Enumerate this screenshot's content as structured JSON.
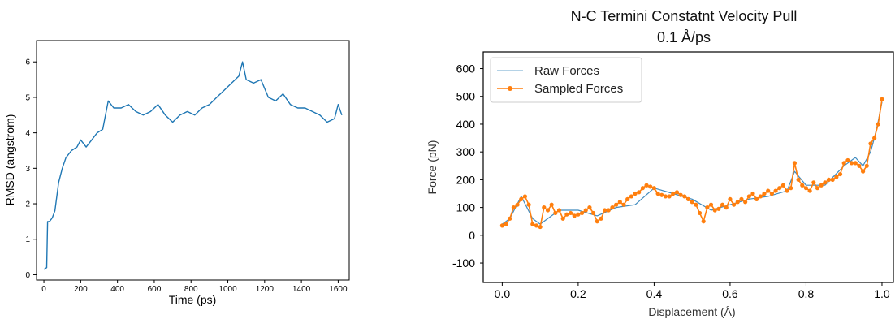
{
  "chart_data": [
    {
      "type": "line",
      "title": "",
      "xlabel": "Time (ps)",
      "ylabel": "RMSD (angstrom)",
      "xlim": [
        -40,
        1660
      ],
      "ylim": [
        -0.15,
        6.6
      ],
      "x_ticks": [
        "0",
        "200",
        "400",
        "600",
        "800",
        "1000",
        "1200",
        "1400",
        "1600"
      ],
      "y_ticks": [
        "0",
        "1",
        "2",
        "3",
        "4",
        "5",
        "6"
      ],
      "grid": false,
      "series": [
        {
          "color": "#1f77b4",
          "x": [
            0,
            15,
            20,
            30,
            45,
            60,
            80,
            100,
            120,
            150,
            180,
            200,
            230,
            260,
            290,
            320,
            350,
            380,
            420,
            460,
            500,
            540,
            580,
            620,
            660,
            700,
            740,
            780,
            820,
            860,
            900,
            940,
            980,
            1020,
            1060,
            1080,
            1100,
            1140,
            1180,
            1220,
            1260,
            1300,
            1340,
            1380,
            1420,
            1460,
            1500,
            1540,
            1580,
            1600,
            1620
          ],
          "y": [
            0.15,
            0.2,
            1.5,
            1.5,
            1.6,
            1.8,
            2.6,
            3.0,
            3.3,
            3.5,
            3.6,
            3.8,
            3.6,
            3.8,
            4.0,
            4.1,
            4.9,
            4.7,
            4.7,
            4.8,
            4.6,
            4.5,
            4.6,
            4.8,
            4.5,
            4.3,
            4.5,
            4.6,
            4.5,
            4.7,
            4.8,
            5.0,
            5.2,
            5.4,
            5.6,
            6.0,
            5.5,
            5.4,
            5.5,
            5.0,
            4.9,
            5.1,
            4.8,
            4.7,
            4.7,
            4.6,
            4.5,
            4.3,
            4.4,
            4.8,
            4.5
          ]
        }
      ]
    },
    {
      "type": "line",
      "title": "N-C Termini Constatnt Velocity Pull",
      "subtitle": "0.1 Å/ps",
      "xlabel": "Displacement (Å)",
      "ylabel": "Force (pN)",
      "xlim": [
        -0.05,
        1.03
      ],
      "ylim": [
        -170,
        660
      ],
      "x_ticks": [
        "0.0",
        "0.2",
        "0.4",
        "0.6",
        "0.8",
        "1.0"
      ],
      "y_ticks": [
        "-100",
        "0",
        "100",
        "200",
        "300",
        "400",
        "500",
        "600"
      ],
      "grid": false,
      "legend": "top-left",
      "series": [
        {
          "name": "Raw Forces",
          "color": "#1f77b4",
          "x": [
            0.0,
            0.02,
            0.05,
            0.08,
            0.1,
            0.15,
            0.2,
            0.25,
            0.3,
            0.35,
            0.4,
            0.45,
            0.5,
            0.55,
            0.6,
            0.65,
            0.7,
            0.75,
            0.77,
            0.8,
            0.85,
            0.9,
            0.93,
            0.95,
            0.97,
            0.98,
            0.99,
            1.0
          ],
          "y": [
            40,
            60,
            140,
            60,
            40,
            90,
            90,
            70,
            100,
            110,
            170,
            150,
            130,
            90,
            110,
            130,
            140,
            160,
            230,
            180,
            180,
            250,
            280,
            250,
            300,
            350,
            410,
            480
          ]
        },
        {
          "name": "Sampled Forces",
          "color": "#ff7f0e",
          "x": [
            0.0,
            0.01,
            0.02,
            0.03,
            0.04,
            0.05,
            0.06,
            0.07,
            0.08,
            0.09,
            0.1,
            0.11,
            0.12,
            0.13,
            0.14,
            0.15,
            0.16,
            0.17,
            0.18,
            0.19,
            0.2,
            0.21,
            0.22,
            0.23,
            0.24,
            0.25,
            0.26,
            0.27,
            0.28,
            0.29,
            0.3,
            0.31,
            0.32,
            0.33,
            0.34,
            0.35,
            0.36,
            0.37,
            0.38,
            0.39,
            0.4,
            0.41,
            0.42,
            0.43,
            0.44,
            0.45,
            0.46,
            0.47,
            0.48,
            0.49,
            0.5,
            0.51,
            0.52,
            0.53,
            0.54,
            0.55,
            0.56,
            0.57,
            0.58,
            0.59,
            0.6,
            0.61,
            0.62,
            0.63,
            0.64,
            0.65,
            0.66,
            0.67,
            0.68,
            0.69,
            0.7,
            0.71,
            0.72,
            0.73,
            0.74,
            0.75,
            0.76,
            0.77,
            0.78,
            0.79,
            0.8,
            0.81,
            0.82,
            0.83,
            0.84,
            0.85,
            0.86,
            0.87,
            0.88,
            0.89,
            0.9,
            0.91,
            0.92,
            0.93,
            0.94,
            0.95,
            0.96,
            0.97,
            0.98,
            0.99,
            1.0
          ],
          "y": [
            35,
            40,
            60,
            100,
            110,
            130,
            140,
            110,
            40,
            35,
            30,
            100,
            90,
            110,
            80,
            90,
            60,
            75,
            80,
            70,
            75,
            80,
            90,
            100,
            80,
            50,
            60,
            90,
            90,
            100,
            110,
            120,
            110,
            130,
            140,
            150,
            155,
            170,
            180,
            175,
            170,
            150,
            145,
            140,
            140,
            150,
            155,
            145,
            140,
            130,
            120,
            110,
            80,
            50,
            100,
            110,
            90,
            95,
            110,
            100,
            130,
            110,
            120,
            130,
            120,
            140,
            150,
            130,
            140,
            150,
            160,
            150,
            160,
            170,
            180,
            160,
            170,
            260,
            200,
            180,
            170,
            160,
            190,
            170,
            180,
            190,
            200,
            200,
            210,
            220,
            260,
            270,
            260,
            260,
            250,
            230,
            250,
            330,
            350,
            400,
            490
          ]
        }
      ]
    }
  ]
}
